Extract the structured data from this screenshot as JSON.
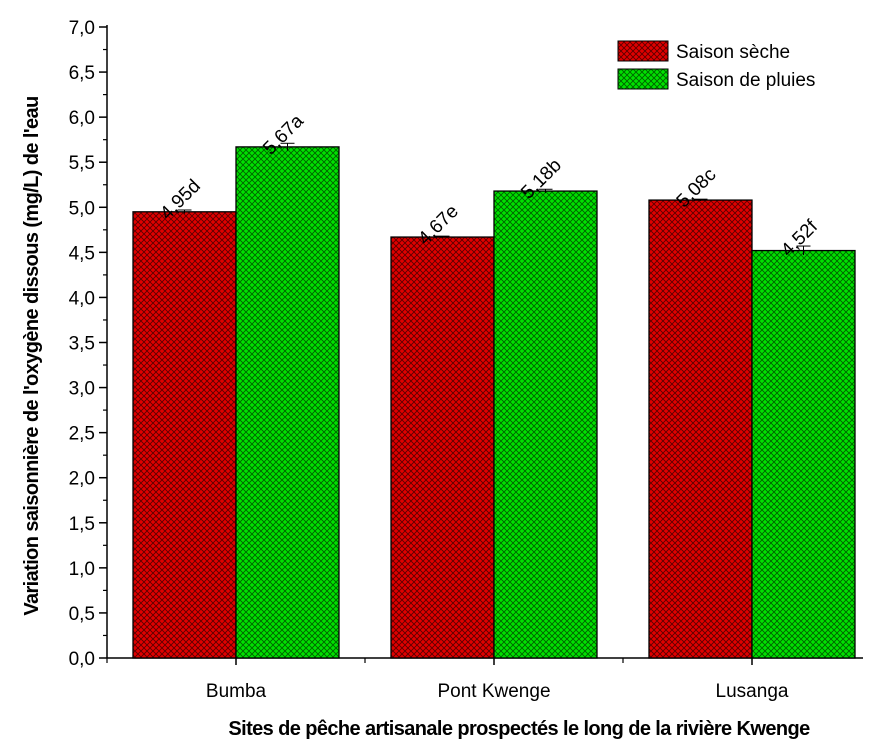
{
  "chart_data": {
    "type": "bar",
    "xlabel": "Sites de pêche artisanale prospectés le long de la rivière Kwenge",
    "ylabel": "Variation saisonnière de l'oxygène dissous (mg/L) de l'eau",
    "ylim": [
      0,
      7
    ],
    "yticks": [
      "0,0",
      "0,5",
      "1,0",
      "1,5",
      "2,0",
      "2,5",
      "3,0",
      "3,5",
      "4,0",
      "4,5",
      "5,0",
      "5,5",
      "6,0",
      "6,5",
      "7,0"
    ],
    "categories": [
      "Bumba",
      "Pont Kwenge",
      "Lusanga"
    ],
    "series": [
      {
        "name": "Saison sèche",
        "color": "#e00000",
        "values": [
          4.95,
          4.67,
          5.08
        ],
        "errors": [
          0.02,
          0.01,
          0.01
        ],
        "labels": [
          "4,95d",
          "4,67e",
          "5,08c"
        ]
      },
      {
        "name": "Saison de pluies",
        "color": "#00e000",
        "values": [
          5.67,
          5.18,
          4.52
        ],
        "errors": [
          0.04,
          0.02,
          0.05
        ],
        "labels": [
          "5,67a",
          "5,18b",
          "4,52f"
        ]
      }
    ],
    "legend": "top-right",
    "grid": false
  }
}
